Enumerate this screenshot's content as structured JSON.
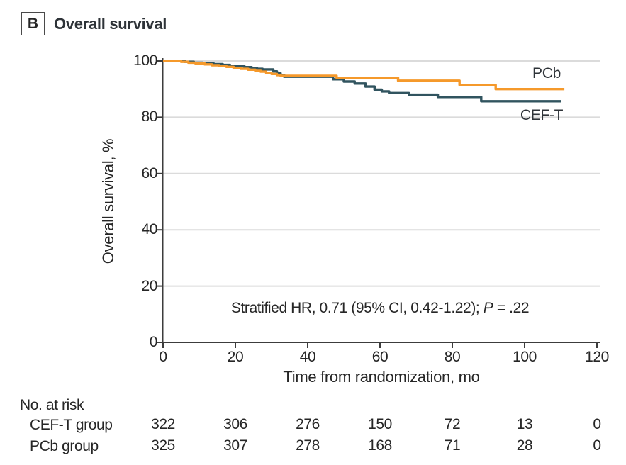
{
  "panel": {
    "letter": "B",
    "title": "Overall survival"
  },
  "colors": {
    "pcb": "#F5992B",
    "ceft": "#31545F",
    "grid": "#DBDBDB",
    "axis": "#3C3C3C",
    "text": "#262626"
  },
  "chart_data": {
    "type": "line",
    "subtype": "kaplan-meier-step",
    "title": "Overall survival",
    "xlabel": "Time from randomization, mo",
    "ylabel": "Overall survival, %",
    "xlim": [
      0,
      120
    ],
    "ylim": [
      0,
      100
    ],
    "xticks": [
      0,
      20,
      40,
      60,
      80,
      100,
      120
    ],
    "yticks": [
      0,
      20,
      40,
      60,
      80,
      100
    ],
    "grid": "horizontal",
    "legend_position": "on-chart-right",
    "annotation_prefix": "Stratified HR, 0.71 (95% CI, 0.42-1.22); ",
    "annotation_italic": "P",
    "annotation_suffix": " = .22",
    "series": [
      {
        "name": "PCb",
        "label": "PCb",
        "color": "#F5992B",
        "points": [
          [
            0,
            100
          ],
          [
            5,
            100
          ],
          [
            5,
            99.7
          ],
          [
            7,
            99.7
          ],
          [
            7,
            99.4
          ],
          [
            9,
            99.4
          ],
          [
            9,
            99.1
          ],
          [
            11.5,
            99.1
          ],
          [
            11.5,
            98.8
          ],
          [
            13.5,
            98.8
          ],
          [
            13.5,
            98.5
          ],
          [
            15.5,
            98.5
          ],
          [
            15.5,
            98.2
          ],
          [
            17.5,
            98.2
          ],
          [
            17.5,
            97.9
          ],
          [
            19.5,
            97.9
          ],
          [
            19.5,
            97.5
          ],
          [
            21.5,
            97.5
          ],
          [
            21.5,
            97.2
          ],
          [
            23.5,
            97.2
          ],
          [
            23.5,
            96.9
          ],
          [
            25.5,
            96.9
          ],
          [
            25.5,
            96.5
          ],
          [
            27,
            96.5
          ],
          [
            27,
            96.2
          ],
          [
            28.5,
            96.2
          ],
          [
            28.5,
            95.8
          ],
          [
            30,
            95.8
          ],
          [
            30,
            95.4
          ],
          [
            31.5,
            95.4
          ],
          [
            31.5,
            95.0
          ],
          [
            32.5,
            95.0
          ],
          [
            32.5,
            94.7
          ],
          [
            48,
            94.7
          ],
          [
            48,
            94.0
          ],
          [
            65,
            94.0
          ],
          [
            65,
            93.0
          ],
          [
            82,
            93.0
          ],
          [
            82,
            91.5
          ],
          [
            92,
            91.5
          ],
          [
            92,
            90.0
          ],
          [
            111,
            90.0
          ]
        ]
      },
      {
        "name": "CEF-T",
        "label": "CEF-T",
        "color": "#31545F",
        "points": [
          [
            0,
            100
          ],
          [
            6,
            100
          ],
          [
            6,
            99.7
          ],
          [
            8.5,
            99.7
          ],
          [
            8.5,
            99.4
          ],
          [
            11,
            99.4
          ],
          [
            11,
            99.1
          ],
          [
            14,
            99.1
          ],
          [
            14,
            98.9
          ],
          [
            16.5,
            98.9
          ],
          [
            16.5,
            98.6
          ],
          [
            18.5,
            98.6
          ],
          [
            18.5,
            98.3
          ],
          [
            20.5,
            98.3
          ],
          [
            20.5,
            98.1
          ],
          [
            22.5,
            98.1
          ],
          [
            22.5,
            97.8
          ],
          [
            24.5,
            97.8
          ],
          [
            24.5,
            97.5
          ],
          [
            26,
            97.5
          ],
          [
            26,
            97.2
          ],
          [
            27.5,
            97.2
          ],
          [
            27.5,
            97.0
          ],
          [
            30.5,
            97.0
          ],
          [
            30.5,
            96.3
          ],
          [
            31.5,
            96.3
          ],
          [
            31.5,
            95.6
          ],
          [
            32.5,
            95.6
          ],
          [
            32.5,
            94.9
          ],
          [
            33.5,
            94.9
          ],
          [
            33.5,
            94.4
          ],
          [
            47,
            94.4
          ],
          [
            47,
            93.5
          ],
          [
            50,
            93.5
          ],
          [
            50,
            92.7
          ],
          [
            53,
            92.7
          ],
          [
            53,
            92.0
          ],
          [
            56,
            92.0
          ],
          [
            56,
            90.9
          ],
          [
            58.5,
            90.9
          ],
          [
            58.5,
            89.8
          ],
          [
            60.5,
            89.8
          ],
          [
            60.5,
            89.2
          ],
          [
            62.5,
            89.2
          ],
          [
            62.5,
            88.6
          ],
          [
            68,
            88.6
          ],
          [
            68,
            88.0
          ],
          [
            76,
            88.0
          ],
          [
            76,
            87.2
          ],
          [
            88,
            87.2
          ],
          [
            88,
            85.7
          ],
          [
            110,
            85.7
          ]
        ]
      }
    ]
  },
  "at_risk": {
    "title": "No. at risk",
    "rows": [
      {
        "label": "CEF-T group",
        "values": [
          322,
          306,
          276,
          150,
          72,
          13,
          0
        ]
      },
      {
        "label": "PCb group",
        "values": [
          325,
          307,
          278,
          168,
          71,
          28,
          0
        ]
      }
    ]
  }
}
